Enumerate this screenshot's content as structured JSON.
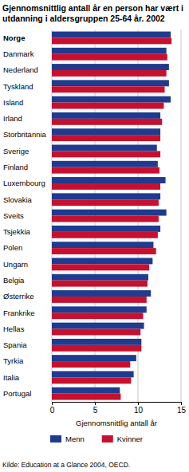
{
  "chart_data": {
    "type": "bar",
    "orientation": "horizontal",
    "title": "Gjennomsnittlig antall år en person har vært i utdanning i aldersgruppen 25-64 år. 2002",
    "x_label": "Gjennomsnittlig antall år",
    "source": "Kilde: Education at a Glance 2004, OECD.",
    "categories": [
      "Norge",
      "Danmark",
      "Nederland",
      "Tyskland",
      "Island",
      "Irland",
      "Storbritannia",
      "Sverige",
      "Finland",
      "Luxembourg",
      "Slovakia",
      "Sveits",
      "Tsjekkia",
      "Polen",
      "Ungarn",
      "Belgia",
      "Østerrike",
      "Frankrike",
      "Hellas",
      "Spania",
      "Tyrkia",
      "Italia",
      "Portugal"
    ],
    "series": [
      {
        "name": "Menn",
        "color": "#1f3b8f",
        "values": [
          13.8,
          13.3,
          13.6,
          13.6,
          13.8,
          12.6,
          12.6,
          12.2,
          12.3,
          13.2,
          12.6,
          13.3,
          12.6,
          11.8,
          11.7,
          11.2,
          11.5,
          11.0,
          10.7,
          10.4,
          9.8,
          9.5,
          7.9
        ]
      },
      {
        "name": "Kvinner",
        "color": "#c8102e",
        "values": [
          13.9,
          13.4,
          13.3,
          13.1,
          13.0,
          12.8,
          12.6,
          12.6,
          12.5,
          12.6,
          12.4,
          12.4,
          12.3,
          12.1,
          11.3,
          11.1,
          11.0,
          10.6,
          10.3,
          10.4,
          9.1,
          9.2,
          8.0
        ]
      }
    ],
    "xlim": [
      0,
      15
    ],
    "xticks": [
      0,
      5,
      10,
      15
    ],
    "grid": true,
    "legend": "bottom"
  }
}
